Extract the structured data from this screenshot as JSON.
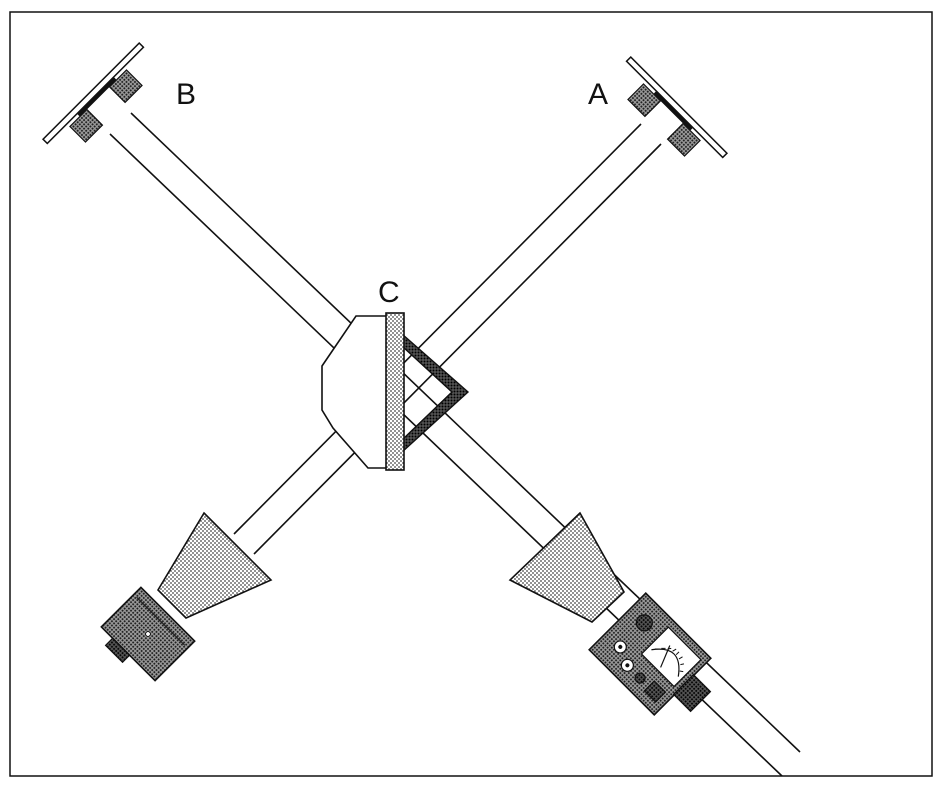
{
  "labels": {
    "a": "A",
    "b": "B",
    "c": "C"
  },
  "icons": {
    "meter": "receiver-meter-icon",
    "horn": "horn-antenna-icon",
    "transmitter": "transmitter-icon"
  },
  "colors": {
    "line": "#111111",
    "background": "#ffffff",
    "stipple_light": "#c8c8c8",
    "stipple_dark": "#6a6a6a"
  }
}
